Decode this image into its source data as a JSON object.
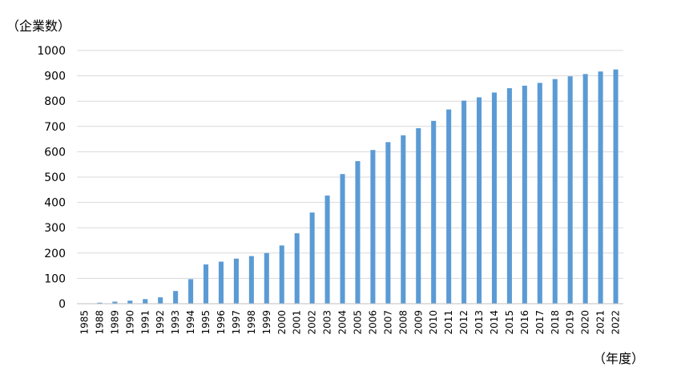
{
  "chart_data": {
    "type": "bar",
    "ylabel": "（企業数）",
    "xlabel": "（年度）",
    "ylim": [
      0,
      1000
    ],
    "yticks": [
      0,
      100,
      200,
      300,
      400,
      500,
      600,
      700,
      800,
      900,
      1000
    ],
    "grid": true,
    "colors": {
      "bar": "#5b9bd5"
    },
    "categories": [
      "1985",
      "1988",
      "1989",
      "1990",
      "1991",
      "1992",
      "1993",
      "1994",
      "1995",
      "1996",
      "1997",
      "1998",
      "1999",
      "2000",
      "2001",
      "2002",
      "2003",
      "2004",
      "2005",
      "2006",
      "2007",
      "2008",
      "2009",
      "2010",
      "2011",
      "2012",
      "2013",
      "2014",
      "2015",
      "2016",
      "2017",
      "2018",
      "2019",
      "2020",
      "2021",
      "2022"
    ],
    "values": [
      1,
      4,
      8,
      12,
      18,
      25,
      50,
      97,
      155,
      166,
      178,
      188,
      200,
      230,
      278,
      360,
      427,
      512,
      563,
      607,
      638,
      665,
      693,
      722,
      767,
      802,
      815,
      834,
      851,
      861,
      872,
      887,
      898,
      907,
      917,
      925
    ]
  }
}
